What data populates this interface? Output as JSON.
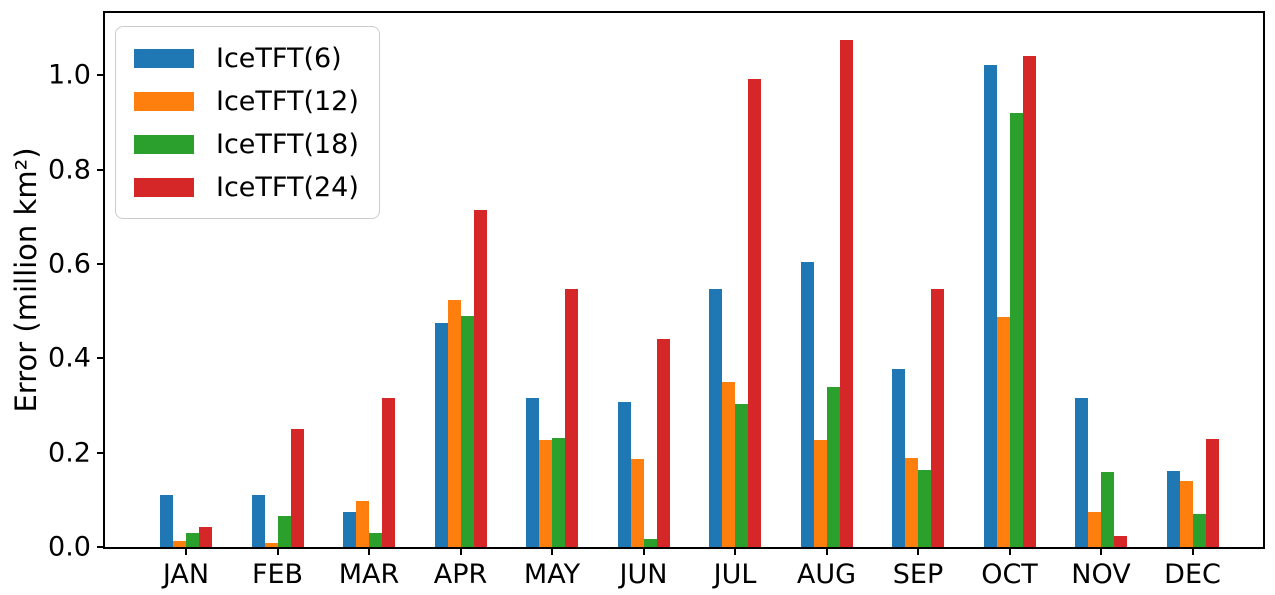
{
  "figure": {
    "background": "#ffffff",
    "frame_color": "#000000"
  },
  "chart_data": {
    "type": "bar",
    "title": "",
    "xlabel": "",
    "ylabel": "Error (million km²)",
    "categories": [
      "JAN",
      "FEB",
      "MAR",
      "APR",
      "MAY",
      "JUN",
      "JUL",
      "AUG",
      "SEP",
      "OCT",
      "NOV",
      "DEC"
    ],
    "series": [
      {
        "name": "IceTFT(6)",
        "color": "#1f77b4",
        "values": [
          0.11,
          0.11,
          0.075,
          0.475,
          0.315,
          0.307,
          0.548,
          0.604,
          0.378,
          1.022,
          0.316,
          0.162
        ]
      },
      {
        "name": "IceTFT(12)",
        "color": "#ff7f0e",
        "values": [
          0.012,
          0.008,
          0.097,
          0.523,
          0.227,
          0.187,
          0.349,
          0.226,
          0.188,
          0.488,
          0.074,
          0.14
        ]
      },
      {
        "name": "IceTFT(18)",
        "color": "#2ca02c",
        "values": [
          0.03,
          0.065,
          0.029,
          0.49,
          0.232,
          0.017,
          0.304,
          0.34,
          0.163,
          0.921,
          0.158,
          0.07
        ]
      },
      {
        "name": "IceTFT(24)",
        "color": "#d62728",
        "values": [
          0.042,
          0.25,
          0.315,
          0.715,
          0.548,
          0.442,
          0.992,
          1.075,
          0.547,
          1.04,
          0.023,
          0.23
        ]
      }
    ],
    "yticks": [
      0.0,
      0.2,
      0.4,
      0.6,
      0.8,
      1.0
    ],
    "ytick_labels": [
      "0.0",
      "0.2",
      "0.4",
      "0.6",
      "0.8",
      "1.0"
    ],
    "ylim": [
      0,
      1.132
    ],
    "grid": false,
    "legend_position": "upper left"
  }
}
